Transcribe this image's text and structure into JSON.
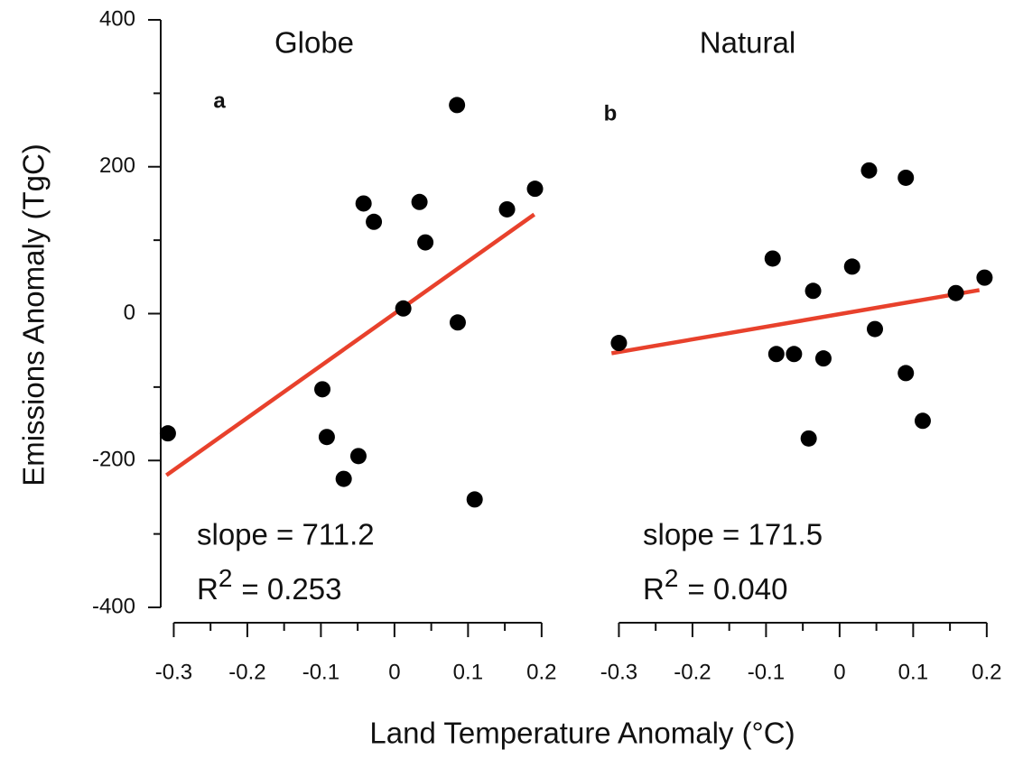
{
  "chart_data": [
    {
      "type": "scatter",
      "title": "Globe",
      "panel_label": "a",
      "ylabel": "Emissions Anomaly (TgC)",
      "xlabel": "Land Temperature Anomaly (°C)",
      "x": [
        -0.308,
        -0.098,
        -0.092,
        -0.069,
        -0.049,
        -0.042,
        -0.028,
        0.012,
        0.034,
        0.042,
        0.085,
        0.086,
        0.109,
        0.153,
        0.191
      ],
      "y": [
        -163,
        -103,
        -168,
        -225,
        -194,
        150,
        125,
        7,
        152,
        97,
        284,
        -12,
        -253,
        142,
        170
      ],
      "color": "#000000",
      "fit": {
        "x": [
          -0.31,
          0.19
        ],
        "y": [
          -220,
          135
        ],
        "color": "#e8412c"
      },
      "slope_label": "slope = 711.2",
      "r2_symbol": "R",
      "r2_sup": "2",
      "r2_text": "= 0.253",
      "xlim": [
        -0.33,
        0.21
      ],
      "xticks": [
        -0.3,
        -0.2,
        -0.1,
        0,
        0.1,
        0.2
      ],
      "xminor": [
        -0.25,
        -0.15,
        -0.05,
        0.05,
        0.15
      ],
      "ylim": [
        -400,
        400
      ],
      "yticks": [
        -400,
        -200,
        0,
        200,
        400
      ],
      "yminor": [
        -300,
        -100,
        100,
        300
      ]
    },
    {
      "type": "scatter",
      "title": "Natural",
      "panel_label": "b",
      "x": [
        -0.3,
        -0.091,
        -0.086,
        -0.062,
        -0.042,
        -0.036,
        -0.022,
        0.017,
        0.04,
        0.048,
        0.09,
        0.09,
        0.113,
        0.158,
        0.197
      ],
      "y": [
        -40,
        75,
        -55,
        -55,
        -170,
        31,
        -61,
        64,
        195,
        -21,
        185,
        -81,
        -146,
        28,
        49
      ],
      "color": "#000000",
      "fit": {
        "x": [
          -0.31,
          0.19
        ],
        "y": [
          -54,
          32
        ],
        "color": "#e8412c"
      },
      "slope_label": "slope = 171.5",
      "r2_symbol": "R",
      "r2_sup": "2",
      "r2_text": "= 0.040",
      "xlim": [
        -0.33,
        0.21
      ],
      "xticks": [
        -0.3,
        -0.2,
        -0.1,
        0,
        0.1,
        0.2
      ],
      "xminor": [
        -0.25,
        -0.15,
        -0.05,
        0.05,
        0.15
      ],
      "ylim": [
        -400,
        400
      ]
    }
  ]
}
